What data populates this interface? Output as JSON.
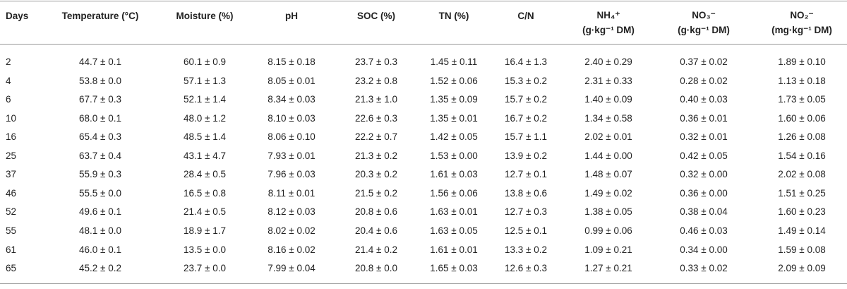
{
  "table": {
    "header": [
      [
        "Days"
      ],
      [
        "Temperature (°C)"
      ],
      [
        "Moisture (%)"
      ],
      [
        "pH"
      ],
      [
        "SOC (%)"
      ],
      [
        "TN (%)"
      ],
      [
        "C/N"
      ],
      [
        "NH₄⁺",
        "(g·kg⁻¹ DM)"
      ],
      [
        "NO₃⁻",
        "(g·kg⁻¹ DM)"
      ],
      [
        "NO₂⁻",
        "(mg·kg⁻¹ DM)"
      ]
    ],
    "rows": [
      [
        "2",
        "44.7 ± 0.1",
        "60.1 ± 0.9",
        "8.15 ± 0.18",
        "23.7 ± 0.3",
        "1.45 ± 0.11",
        "16.4 ± 1.3",
        "2.40 ± 0.29",
        "0.37 ± 0.02",
        "1.89 ± 0.10"
      ],
      [
        "4",
        "53.8 ± 0.0",
        "57.1 ± 1.3",
        "8.05 ± 0.01",
        "23.2 ± 0.8",
        "1.52 ± 0.06",
        "15.3 ± 0.2",
        "2.31 ± 0.33",
        "0.28 ± 0.02",
        "1.13 ± 0.18"
      ],
      [
        "6",
        "67.7 ± 0.3",
        "52.1 ± 1.4",
        "8.34 ± 0.03",
        "21.3 ± 1.0",
        "1.35 ± 0.09",
        "15.7 ± 0.2",
        "1.40 ± 0.09",
        "0.40 ± 0.03",
        "1.73 ± 0.05"
      ],
      [
        "10",
        "68.0 ± 0.1",
        "48.0 ± 1.2",
        "8.10 ± 0.03",
        "22.6 ± 0.3",
        "1.35 ± 0.01",
        "16.7 ± 0.2",
        "1.34 ± 0.58",
        "0.36 ± 0.01",
        "1.60 ± 0.06"
      ],
      [
        "16",
        "65.4 ± 0.3",
        "48.5 ± 1.4",
        "8.06 ± 0.10",
        "22.2 ± 0.7",
        "1.42 ± 0.05",
        "15.7 ± 1.1",
        "2.02 ± 0.01",
        "0.32 ± 0.01",
        "1.26 ± 0.08"
      ],
      [
        "25",
        "63.7 ± 0.4",
        "43.1 ± 4.7",
        "7.93 ± 0.01",
        "21.3 ± 0.2",
        "1.53 ± 0.00",
        "13.9 ± 0.2",
        "1.44 ± 0.00",
        "0.42 ± 0.05",
        "1.54 ± 0.16"
      ],
      [
        "37",
        "55.9 ± 0.3",
        "28.4 ± 0.5",
        "7.96 ± 0.03",
        "20.3 ± 0.2",
        "1.61 ± 0.03",
        "12.7 ± 0.1",
        "1.48 ± 0.07",
        "0.32 ± 0.00",
        "2.02 ± 0.08"
      ],
      [
        "46",
        "55.5 ± 0.0",
        "16.5 ± 0.8",
        "8.11 ± 0.01",
        "21.5 ± 0.2",
        "1.56 ± 0.06",
        "13.8 ± 0.6",
        "1.49 ± 0.02",
        "0.36 ± 0.00",
        "1.51 ± 0.25"
      ],
      [
        "52",
        "49.6 ± 0.1",
        "21.4 ± 0.5",
        "8.12 ± 0.03",
        "20.8 ± 0.6",
        "1.63 ± 0.01",
        "12.7 ± 0.3",
        "1.38 ± 0.05",
        "0.38 ± 0.04",
        "1.60 ± 0.23"
      ],
      [
        "55",
        "48.1 ± 0.0",
        "18.9 ± 1.7",
        "8.02 ± 0.02",
        "20.4 ± 0.6",
        "1.63 ± 0.05",
        "12.5 ± 0.1",
        "0.99 ± 0.06",
        "0.46 ± 0.03",
        "1.49 ± 0.14"
      ],
      [
        "61",
        "46.0 ± 0.1",
        "13.5 ± 0.0",
        "8.16 ± 0.02",
        "21.4 ± 0.2",
        "1.61 ± 0.01",
        "13.3 ± 0.2",
        "1.09 ± 0.21",
        "0.34 ± 0.00",
        "1.59 ± 0.08"
      ],
      [
        "65",
        "45.2 ± 0.2",
        "23.7 ± 0.0",
        "7.99 ± 0.04",
        "20.8 ± 0.0",
        "1.65 ± 0.03",
        "12.6 ± 0.3",
        "1.27 ± 0.21",
        "0.33 ± 0.02",
        "2.09 ± 0.09"
      ]
    ]
  }
}
